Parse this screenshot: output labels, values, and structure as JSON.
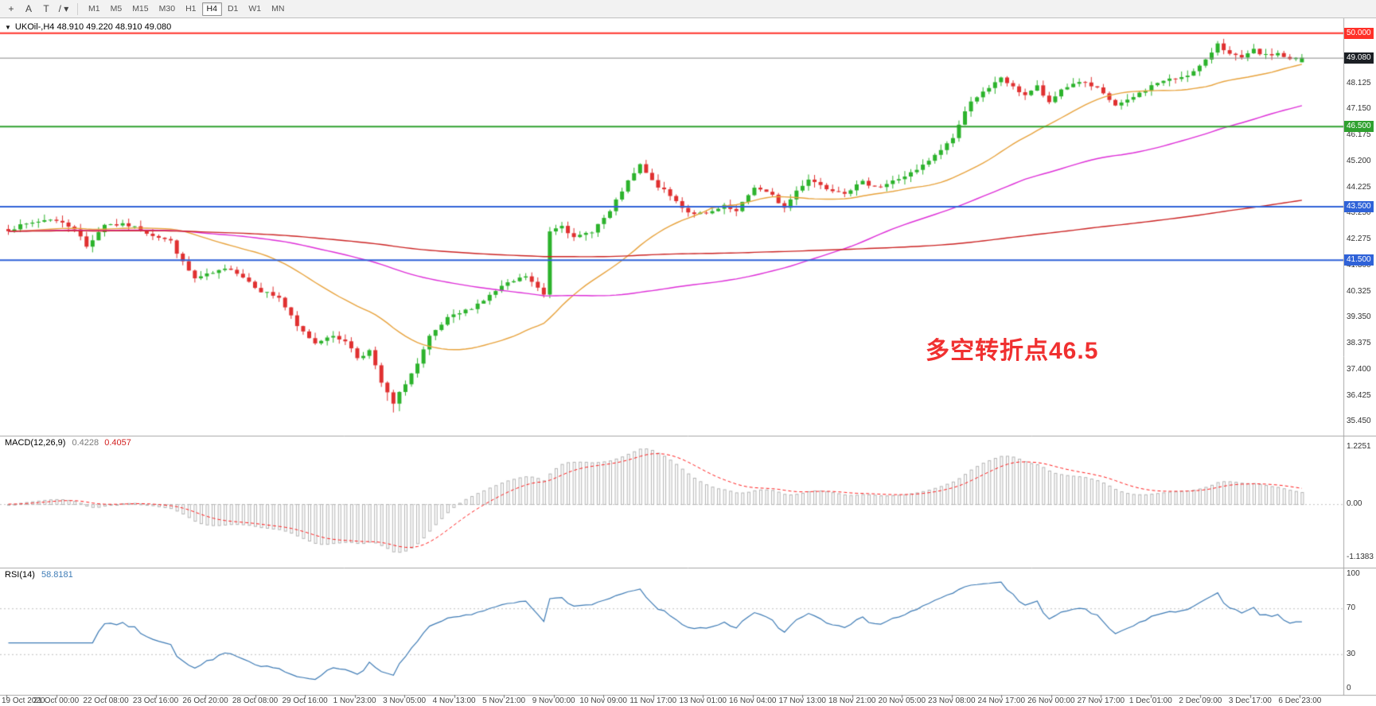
{
  "toolbar": {
    "tools": [
      {
        "name": "crosshair-tool",
        "glyph": "+"
      },
      {
        "name": "text-tool",
        "glyph": "A"
      },
      {
        "name": "shapes-tool",
        "glyph": "T"
      },
      {
        "name": "line-studies-dropdown",
        "glyph": "/",
        "dropdown": "▾"
      }
    ],
    "timeframes": [
      {
        "label": "M1",
        "active": false
      },
      {
        "label": "M5",
        "active": false
      },
      {
        "label": "M15",
        "active": false
      },
      {
        "label": "M30",
        "active": false
      },
      {
        "label": "H1",
        "active": false
      },
      {
        "label": "H4",
        "active": true
      },
      {
        "label": "D1",
        "active": false
      },
      {
        "label": "W1",
        "active": false
      },
      {
        "label": "MN",
        "active": false
      }
    ]
  },
  "chart": {
    "one_click_glyph": "▼",
    "title_text": "UKOil-,H4 48.910 49.220 48.910 49.080",
    "symbol": "UKOil-",
    "period": "H4",
    "annotation": {
      "text": "多空转折点46.5",
      "color": "#f03030"
    },
    "current_price_label": "49.080"
  },
  "indicators": {
    "macd": {
      "label": "MACD(12,26,9)",
      "value_main": "0.4228",
      "value_signal": "0.4057"
    },
    "rsi": {
      "label": "RSI(14)",
      "value": "58.8181"
    }
  },
  "chart_data": {
    "type": "candlestick",
    "symbol": "UKOil-",
    "timeframe": "H4",
    "title": "UKOil-,H4",
    "annotation": "多空转折点46.5",
    "ohlc_current": {
      "open": 48.91,
      "high": 49.22,
      "low": 48.91,
      "close": 49.08
    },
    "y_axis": {
      "min": 35.1,
      "max": 50.35,
      "ticks": [
        {
          "value": 49.1,
          "label": "49.100"
        },
        {
          "value": 48.125,
          "label": "48.125"
        },
        {
          "value": 47.15,
          "label": "47.150"
        },
        {
          "value": 46.175,
          "label": "46.175"
        },
        {
          "value": 45.2,
          "label": "45.200"
        },
        {
          "value": 44.225,
          "label": "44.225"
        },
        {
          "value": 43.25,
          "label": "43.250"
        },
        {
          "value": 42.275,
          "label": "42.275"
        },
        {
          "value": 41.3,
          "label": "41.300"
        },
        {
          "value": 40.325,
          "label": "40.325"
        },
        {
          "value": 39.35,
          "label": "39.350"
        },
        {
          "value": 38.375,
          "label": "38.375"
        },
        {
          "value": 37.4,
          "label": "37.400"
        },
        {
          "value": 36.425,
          "label": "36.425"
        },
        {
          "value": 35.45,
          "label": "35.450"
        }
      ]
    },
    "levels": [
      {
        "price": 50.0,
        "label": "50.000",
        "color": "#ff3028",
        "width": 2
      },
      {
        "price": 46.5,
        "label": "46.500",
        "color": "#2fa12f",
        "width": 2
      },
      {
        "price": 43.5,
        "label": "43.500",
        "color": "#2f62d8",
        "width": 2
      },
      {
        "price": 41.5,
        "label": "41.500",
        "color": "#2f62d8",
        "width": 2
      }
    ],
    "current_price": {
      "value": 49.08,
      "label": "49.080",
      "color": "#1b1f24",
      "line_color": "#8a8a8a"
    },
    "bars": {
      "count": 216,
      "seed": 7,
      "noise": 0.14,
      "close_anchors": [
        [
          0,
          42.65
        ],
        [
          4,
          42.9
        ],
        [
          7,
          43.05
        ],
        [
          11,
          42.7
        ],
        [
          13,
          42.0
        ],
        [
          16,
          42.85
        ],
        [
          20,
          42.8
        ],
        [
          24,
          42.45
        ],
        [
          27,
          42.2
        ],
        [
          29,
          41.4
        ],
        [
          31,
          40.8
        ],
        [
          34,
          41.0
        ],
        [
          37,
          41.2
        ],
        [
          40,
          40.7
        ],
        [
          42,
          40.35
        ],
        [
          45,
          40.1
        ],
        [
          48,
          39.0
        ],
        [
          51,
          38.4
        ],
        [
          53,
          38.65
        ],
        [
          56,
          38.5
        ],
        [
          58,
          37.85
        ],
        [
          60,
          38.1
        ],
        [
          62,
          36.9
        ],
        [
          64,
          36.1
        ],
        [
          66,
          36.9
        ],
        [
          68,
          37.6
        ],
        [
          70,
          38.6
        ],
        [
          73,
          39.3
        ],
        [
          76,
          39.6
        ],
        [
          79,
          40.0
        ],
        [
          82,
          40.5
        ],
        [
          86,
          40.9
        ],
        [
          89,
          40.2
        ],
        [
          90,
          42.6
        ],
        [
          92,
          42.85
        ],
        [
          94,
          42.3
        ],
        [
          97,
          42.6
        ],
        [
          100,
          43.3
        ],
        [
          102,
          44.1
        ],
        [
          105,
          45.05
        ],
        [
          107,
          44.45
        ],
        [
          110,
          43.9
        ],
        [
          113,
          43.3
        ],
        [
          116,
          43.2
        ],
        [
          119,
          43.5
        ],
        [
          121,
          43.3
        ],
        [
          124,
          44.25
        ],
        [
          127,
          43.9
        ],
        [
          129,
          43.45
        ],
        [
          131,
          44.1
        ],
        [
          133,
          44.55
        ],
        [
          136,
          44.2
        ],
        [
          139,
          44.05
        ],
        [
          142,
          44.4
        ],
        [
          145,
          44.25
        ],
        [
          148,
          44.55
        ],
        [
          151,
          44.85
        ],
        [
          154,
          45.4
        ],
        [
          157,
          46.1
        ],
        [
          160,
          47.5
        ],
        [
          163,
          47.9
        ],
        [
          165,
          48.35
        ],
        [
          167,
          47.95
        ],
        [
          169,
          47.7
        ],
        [
          171,
          48.0
        ],
        [
          173,
          47.35
        ],
        [
          175,
          47.9
        ],
        [
          178,
          48.2
        ],
        [
          181,
          47.9
        ],
        [
          184,
          47.3
        ],
        [
          186,
          47.45
        ],
        [
          189,
          47.9
        ],
        [
          191,
          48.15
        ],
        [
          194,
          48.3
        ],
        [
          197,
          48.55
        ],
        [
          199,
          48.95
        ],
        [
          201,
          49.65
        ],
        [
          203,
          49.2
        ],
        [
          205,
          49.05
        ],
        [
          207,
          49.35
        ],
        [
          209,
          49.15
        ],
        [
          211,
          49.25
        ],
        [
          213,
          49.0
        ],
        [
          215,
          49.08
        ]
      ]
    },
    "ma_lines": [
      {
        "name": "ma-fast",
        "period": 28,
        "color": "#e8a33d"
      },
      {
        "name": "ma-mid",
        "period": 80,
        "color": "#de2fd8"
      },
      {
        "name": "ma-slow",
        "period": 200,
        "color": "#cc2424"
      }
    ],
    "macd": {
      "fast": 12,
      "slow": 26,
      "signal": 9,
      "range": [
        -1.25,
        1.32
      ],
      "axis": [
        {
          "value": 1.2251,
          "label": "1.2251"
        },
        {
          "value": 0,
          "label": "0.00"
        },
        {
          "value": -1.1383,
          "label": "-1.1383"
        }
      ],
      "histogram_color": "#b4b4b4",
      "signal_color": "#ff2020"
    },
    "rsi": {
      "period": 14,
      "range": [
        0,
        100
      ],
      "color": "#3f7cb6",
      "dotted_levels": [
        70,
        30
      ],
      "axis": [
        {
          "value": 100,
          "label": "100"
        },
        {
          "value": 70,
          "label": "70"
        },
        {
          "value": 30,
          "label": "30"
        },
        {
          "value": 0,
          "label": "0"
        }
      ]
    },
    "x_axis": {
      "labels": [
        "19 Oct 2020",
        "21 Oct 00:00",
        "22 Oct 08:00",
        "23 Oct 16:00",
        "26 Oct 20:00",
        "28 Oct 08:00",
        "29 Oct 16:00",
        "1 Nov 23:00",
        "3 Nov 05:00",
        "4 Nov 13:00",
        "5 Nov 21:00",
        "9 Nov 00:00",
        "10 Nov 09:00",
        "11 Nov 17:00",
        "13 Nov 01:00",
        "16 Nov 04:00",
        "17 Nov 13:00",
        "18 Nov 21:00",
        "20 Nov 05:00",
        "23 Nov 08:00",
        "24 Nov 17:00",
        "26 Nov 00:00",
        "27 Nov 17:00",
        "1 Dec 01:00",
        "2 Dec 09:00",
        "3 Dec 17:00",
        "6 Dec 23:00"
      ]
    },
    "colors": {
      "up": "#2cb32c",
      "down": "#e03030",
      "separator": "#a6a6a6",
      "axis_text": "#333333"
    }
  }
}
